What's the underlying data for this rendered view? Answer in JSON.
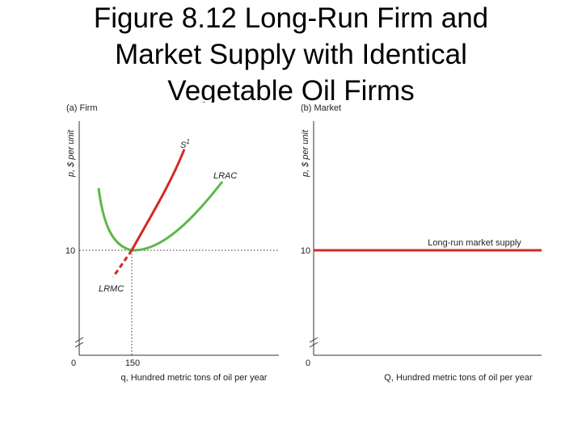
{
  "title_lines": [
    "Figure 8.12  Long-Run Firm and",
    "Market Supply with Identical",
    "Vegetable Oil Firms"
  ],
  "panels": [
    {
      "label": "(a) Firm",
      "y_axis_label": "p, $ per unit",
      "x_axis_label": "q, Hundred metric tons of oil per year",
      "y_tick": "10",
      "x_tick": "150",
      "origin": "0",
      "curves": {
        "supply": "S",
        "supply_sup": "1",
        "lrac": "LRAC",
        "lrmc": "LRMC"
      }
    },
    {
      "label": "(b) Market",
      "y_axis_label": "p, $ per unit",
      "x_axis_label": "Q, Hundred metric tons of oil per year",
      "y_tick": "10",
      "origin": "0",
      "curves": {
        "supply": "Long-run market supply"
      }
    }
  ]
}
